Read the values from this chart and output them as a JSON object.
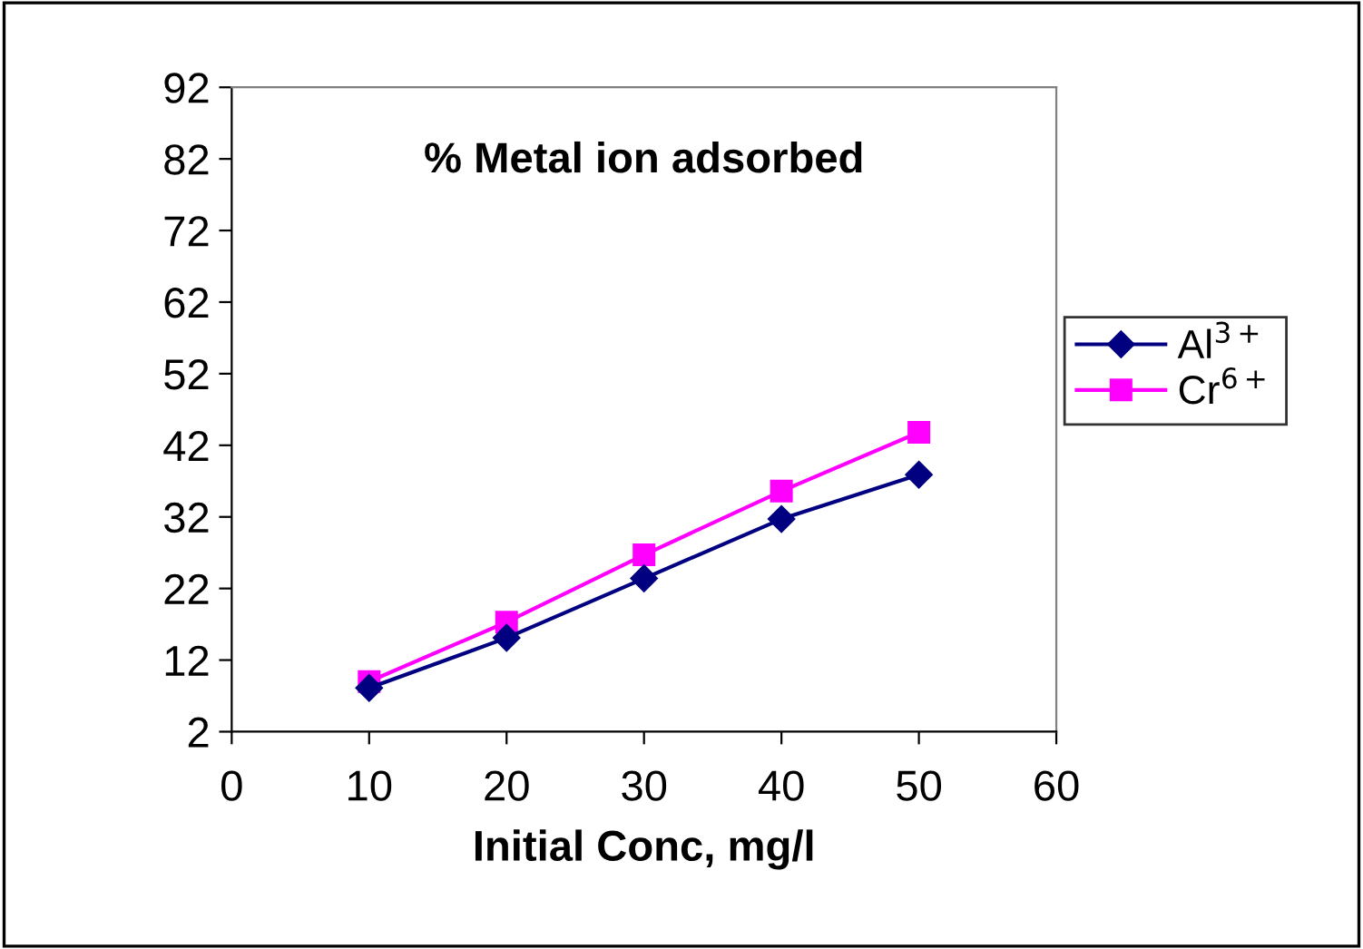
{
  "chart_data": {
    "type": "line",
    "title": "% Metal ion adsorbed",
    "xlabel": "Initial Conc, mg/l",
    "x": [
      10,
      20,
      30,
      40,
      50
    ],
    "series": [
      {
        "name": "Al$^{3+}$",
        "color": "#000080",
        "marker": "diamond",
        "values": [
          8.1,
          15.1,
          23.4,
          31.7,
          37.9
        ]
      },
      {
        "name": "Cr$^{6+}$",
        "color": "#ff00ff",
        "marker": "square",
        "values": [
          9.0,
          17.3,
          26.7,
          35.6,
          43.8
        ]
      }
    ],
    "xlim": [
      0,
      60
    ],
    "xticks": [
      0,
      10,
      20,
      30,
      40,
      50,
      60
    ],
    "ylim": [
      2,
      92
    ],
    "yticks": [
      2,
      12,
      22,
      32,
      42,
      52,
      62,
      72,
      82,
      92
    ],
    "grid": false,
    "legend": "right"
  }
}
